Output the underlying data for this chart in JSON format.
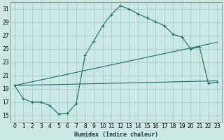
{
  "xlabel": "Humidex (Indice chaleur)",
  "background_color": "#cce8e4",
  "grid_color": "#aacfcb",
  "line_color": "#1a6b6b",
  "xlim": [
    -0.5,
    23.5
  ],
  "ylim": [
    14.0,
    32.0
  ],
  "xticks": [
    0,
    1,
    2,
    3,
    4,
    5,
    6,
    7,
    8,
    9,
    10,
    11,
    12,
    13,
    14,
    15,
    16,
    17,
    18,
    19,
    20,
    21,
    22,
    23
  ],
  "yticks": [
    15,
    17,
    19,
    21,
    23,
    25,
    27,
    29,
    31
  ],
  "line1_x": [
    0,
    1,
    2,
    3,
    4,
    5,
    6,
    7,
    8,
    9,
    10,
    11,
    12,
    13,
    14,
    15,
    16,
    17,
    18,
    19,
    20,
    21,
    22,
    23
  ],
  "line1_y": [
    19.5,
    17.5,
    17.0,
    17.0,
    16.5,
    15.2,
    15.3,
    16.8,
    24.0,
    26.2,
    28.5,
    30.2,
    31.5,
    31.0,
    30.3,
    29.7,
    29.1,
    28.5,
    27.2,
    26.8,
    25.0,
    25.3,
    19.8,
    20.0
  ],
  "line2_x": [
    0,
    23
  ],
  "line2_y": [
    19.5,
    26.0
  ],
  "line3_x": [
    0,
    23
  ],
  "line3_y": [
    19.5,
    20.2
  ]
}
